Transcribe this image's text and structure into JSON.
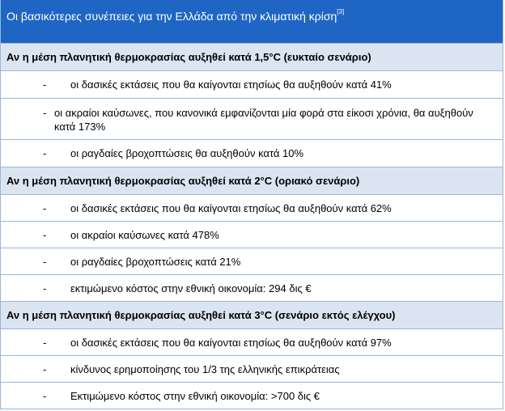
{
  "title": {
    "text": "Οι βασικότερες συνέπειες για την Ελλάδα από την κλιματική κρίση",
    "ref": "[3]"
  },
  "sections": [
    {
      "heading": "Αν η μέση πλανητική θερμοκρασίας αυξηθεί κατά 1,5°C (ευκταίο σενάριο)",
      "items": [
        {
          "bullet": "-",
          "text": "οι δασικές εκτάσεις που θα καίγονται ετησίως θα αυξηθούν κατά 41%"
        },
        {
          "bullet": "-",
          "text": "οι ακραίοι καύσωνες, που κανονικά εμφανίζονται μία φορά στα είκοσι χρόνια, θα αυξηθούν κατά 173%"
        },
        {
          "bullet": "-",
          "text": "οι ραγδαίες βροχοπτώσεις θα αυξηθούν κατά 10%"
        }
      ]
    },
    {
      "heading": "Αν η μέση πλανητική θερμοκρασίας αυξηθεί κατά 2°C (οριακό σενάριο)",
      "items": [
        {
          "bullet": "-",
          "text": "οι δασικές εκτάσεις που θα καίγονται ετησίως θα αυξηθούν κατά 62%"
        },
        {
          "bullet": "-",
          "text": "οι ακραίοι καύσωνες κατά 478%"
        },
        {
          "bullet": "-",
          "text": "οι ραγδαίες βροχοπτώσεις κατά 21%"
        },
        {
          "bullet": "-",
          "text": "εκτιμώμενο κόστος στην εθνική οικονομία: 294 δις €"
        }
      ]
    },
    {
      "heading": "Αν η μέση πλανητική θερμοκρασίας αυξηθεί κατά 3°C (σενάριο εκτός ελέγχου)",
      "items": [
        {
          "bullet": "-",
          "text": "οι δασικές εκτάσεις που θα καίγονται ετησίως θα αυξηθούν κατά 97%"
        },
        {
          "bullet": "-",
          "text": "κίνδυνος ερημοποίησης του 1/3 της ελληνικής επικράτειας"
        },
        {
          "bullet": "-",
          "text": "Εκτιμώμενο κόστος στην εθνική οικονομία: >700 δις €"
        }
      ]
    }
  ]
}
